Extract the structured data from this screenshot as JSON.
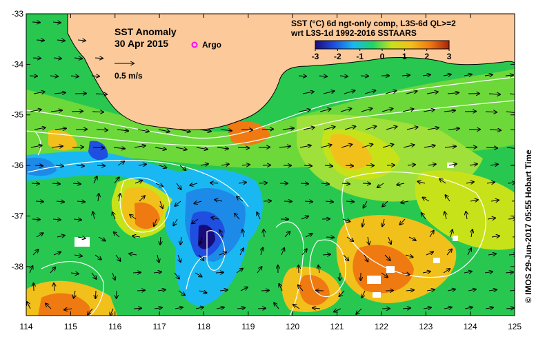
{
  "map": {
    "title": "SST Anomaly",
    "date": "30 Apr 2015",
    "argo_label": "Argo",
    "scale_label": "0.5 m/s",
    "colorbar": {
      "title_line1": "SST (°C) 6d ngt-only comp, L3S-6d QL>=2",
      "title_line2": "wrt L3S-1d 1992-2016 SSTAARS",
      "ticks": [
        "-3",
        "-2",
        "-1",
        "0",
        "1",
        "2",
        "3"
      ],
      "colors": [
        "#1a0b7a",
        "#1e4fe0",
        "#19b8f2",
        "#1ed468",
        "#c8e21a",
        "#f2c01a",
        "#f07a12",
        "#a8220c"
      ]
    },
    "lon_labels": [
      "114",
      "115",
      "116",
      "117",
      "118",
      "119",
      "120",
      "121",
      "122",
      "123",
      "124",
      "125"
    ],
    "lat_labels": [
      "-33",
      "-34",
      "-35",
      "-36",
      "-37",
      "-38"
    ],
    "credit": "© IMOS 29-Jun-2017 05:55 Hobart Time",
    "colors": {
      "land": "#fbc99a",
      "no_data": "#ffffff",
      "argo": "#ff00ff",
      "contour": "#ffffff",
      "arrow": "#000000"
    }
  }
}
